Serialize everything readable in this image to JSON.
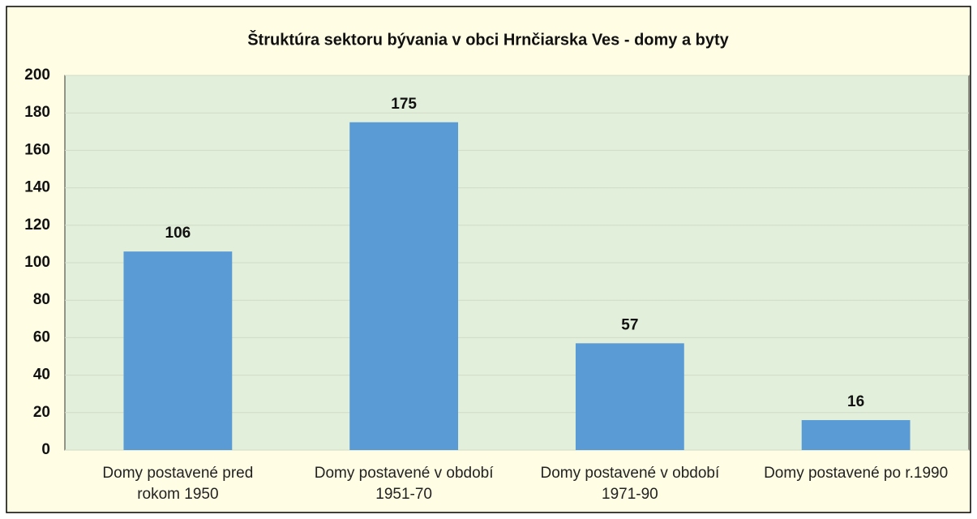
{
  "chart_data": {
    "type": "bar",
    "title": "Štruktúra sektoru bývania v obci Hrnčiarska Ves - domy a byty",
    "categories": [
      "Domy postavené pred rokom 1950",
      "Domy postavené v období 1951-70",
      "Domy postavené v období 1971-90",
      "Domy postavené po r.1990"
    ],
    "values": [
      106,
      175,
      57,
      16
    ],
    "color": "#5b9bd5",
    "ylim": [
      0,
      200
    ],
    "yticks": [
      0,
      20,
      40,
      60,
      80,
      100,
      120,
      140,
      160,
      180,
      200
    ],
    "grid": true
  }
}
